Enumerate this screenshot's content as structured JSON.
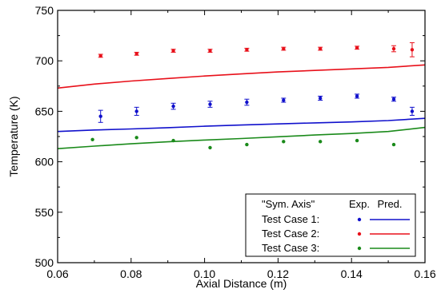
{
  "chart_data": {
    "type": "scatter",
    "xlabel": "Axial Distance (m)",
    "ylabel": "Temperature (K)",
    "xlim": [
      0.06,
      0.16
    ],
    "ylim": [
      500,
      750
    ],
    "x_ticks": [
      "0.06",
      "0.08",
      "0.10",
      "0.12",
      "0.14",
      "0.16"
    ],
    "y_ticks": [
      "500",
      "550",
      "600",
      "650",
      "700",
      "750"
    ],
    "grid": false,
    "legend": {
      "placement": "bottom-right",
      "header": "\"Sym. Axis\"",
      "col_exp": "Exp.",
      "col_pred": "Pred.",
      "labels": [
        "Test Case 1:",
        "Test Case 2:",
        "Test Case 3:"
      ]
    },
    "series": [
      {
        "color": "#1010cc",
        "experimental": {
          "x": [
            0.0717,
            0.0815,
            0.0915,
            0.1015,
            0.1115,
            0.1215,
            0.1315,
            0.1415,
            0.1515,
            0.1565
          ],
          "y": [
            645,
            650,
            655,
            657,
            659,
            661,
            663,
            665,
            662,
            650
          ],
          "err": [
            6,
            4,
            3,
            3,
            3,
            2,
            2,
            2,
            2,
            4
          ]
        },
        "predicted": {
          "x": [
            0.06,
            0.07,
            0.08,
            0.09,
            0.1,
            0.11,
            0.12,
            0.13,
            0.14,
            0.15,
            0.16
          ],
          "y": [
            630,
            631.5,
            632.5,
            633.8,
            635.2,
            636.4,
            637.5,
            638.5,
            639.5,
            640.8,
            643
          ]
        }
      },
      {
        "color": "#e8101a",
        "experimental": {
          "x": [
            0.0717,
            0.0815,
            0.0915,
            0.1015,
            0.1115,
            0.1215,
            0.1315,
            0.1415,
            0.1515,
            0.1565
          ],
          "y": [
            705,
            707,
            710,
            710,
            711,
            712,
            712,
            713,
            712,
            711
          ],
          "err": [
            1.5,
            1.5,
            1.5,
            1.5,
            1.5,
            1.5,
            1.5,
            1.5,
            3,
            7
          ]
        },
        "predicted": {
          "x": [
            0.06,
            0.07,
            0.08,
            0.09,
            0.1,
            0.11,
            0.12,
            0.13,
            0.14,
            0.15,
            0.16
          ],
          "y": [
            673,
            677,
            680,
            682.5,
            685,
            687,
            689,
            690.5,
            692,
            693.5,
            696
          ]
        }
      },
      {
        "color": "#1a8a1a",
        "experimental": {
          "x": [
            0.0695,
            0.0815,
            0.0915,
            0.1015,
            0.1115,
            0.1215,
            0.1315,
            0.1415,
            0.1515
          ],
          "y": [
            622,
            624,
            621,
            614,
            617,
            620,
            620,
            621,
            617
          ]
        },
        "predicted": {
          "x": [
            0.06,
            0.07,
            0.08,
            0.09,
            0.1,
            0.11,
            0.12,
            0.13,
            0.14,
            0.15,
            0.16
          ],
          "y": [
            613,
            615.5,
            617.8,
            619.8,
            621.5,
            623,
            624.8,
            626.5,
            628,
            630,
            634
          ]
        }
      }
    ]
  }
}
